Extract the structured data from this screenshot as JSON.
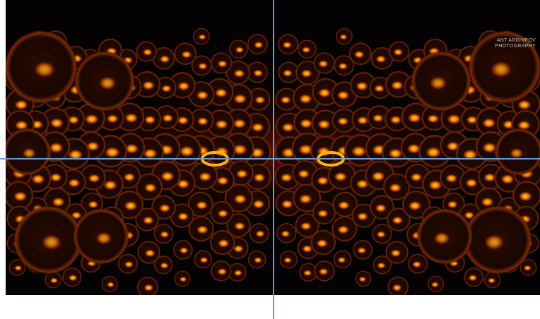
{
  "image": {
    "subject": "symmetric field of glowing orange spheres on black background",
    "background_color": "#040202",
    "glow_colors": [
      "#ffb000",
      "#ff8a00",
      "#ff5a00",
      "#c22a00"
    ],
    "guide_line_color": "#6a9bd1"
  },
  "watermark": {
    "line1": "ANT ARKHIPOV",
    "line2": "PHOTOGRAPHY"
  }
}
